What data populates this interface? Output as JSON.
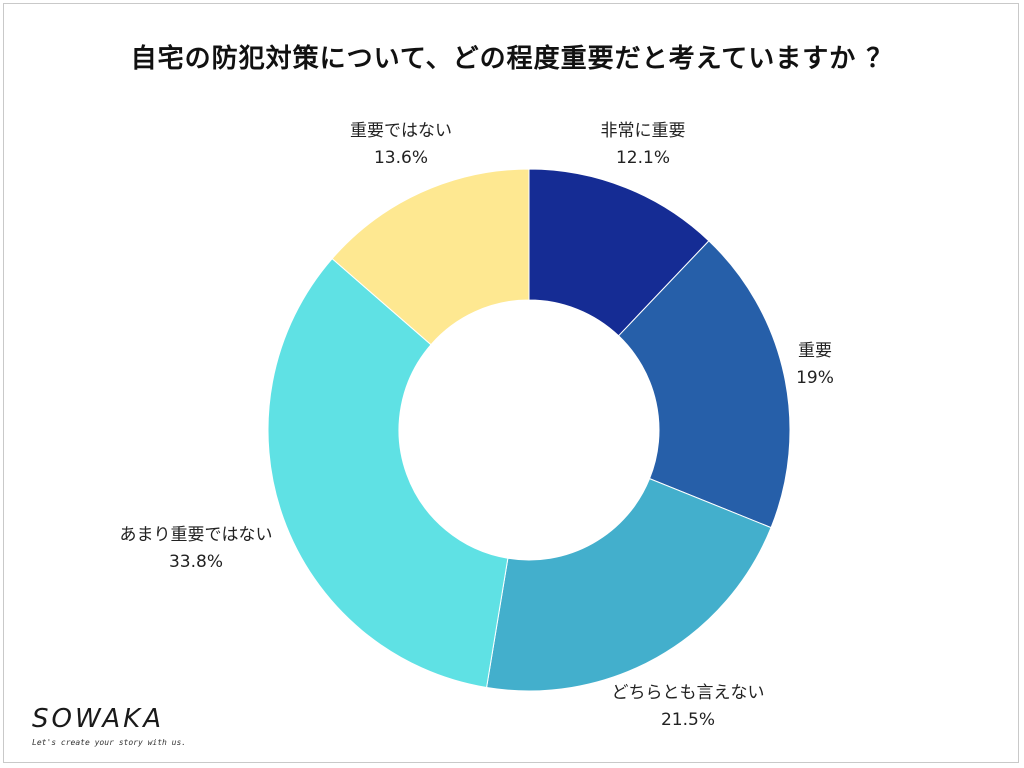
{
  "chart_data": {
    "type": "pie",
    "title": "自宅の防犯対策について、どの程度重要だと考えていますか ？",
    "categories": [
      "非常に重要",
      "重要",
      "どちらとも言えない",
      "あまり重要ではない",
      "重要ではない"
    ],
    "values": [
      12.1,
      19,
      21.5,
      33.8,
      13.6
    ],
    "value_labels": [
      "12.1%",
      "19%",
      "21.5%",
      "33.8%",
      "13.6%"
    ],
    "colors": [
      "#152c94",
      "#265fa9",
      "#43afcc",
      "#5fe1e4",
      "#fee891"
    ],
    "donut": true,
    "start_angle": "top",
    "direction": "clockwise"
  },
  "brand": {
    "name": "SOWAKA",
    "tagline": "Let's create your story with us."
  }
}
